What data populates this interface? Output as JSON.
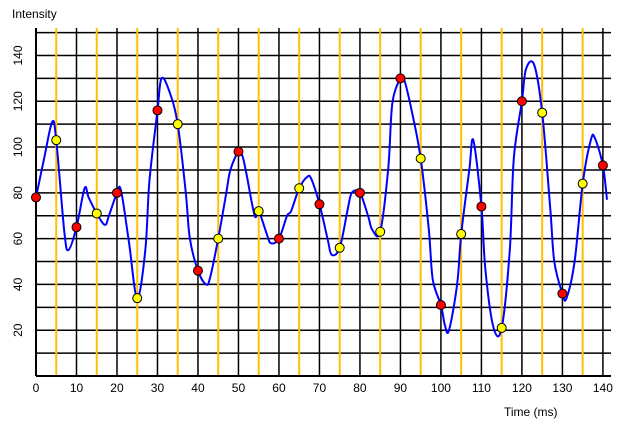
{
  "chart_data": {
    "type": "line",
    "ylabel": "Intensity",
    "xlabel": "Time (ms)",
    "xlim": [
      0,
      142
    ],
    "ylim": [
      0,
      152
    ],
    "x_ticks": [
      0,
      10,
      20,
      30,
      40,
      50,
      60,
      70,
      80,
      90,
      100,
      110,
      120,
      130,
      140
    ],
    "y_ticks": [
      20,
      40,
      60,
      80,
      100,
      120,
      140
    ],
    "grid": true,
    "colors": {
      "line": "#0000ff",
      "grid": "#000000",
      "vertical_markers": "#ffc000",
      "red_points": "#ff0000",
      "yellow_points": "#ffff00"
    },
    "vertical_marker_x": [
      5,
      15,
      25,
      35,
      45,
      55,
      65,
      75,
      85,
      95,
      105,
      115,
      125,
      135
    ],
    "curve": {
      "x": [
        0,
        2,
        4,
        5,
        7,
        8,
        10,
        12,
        13,
        15,
        17,
        18,
        20,
        21,
        23,
        25,
        27,
        28,
        30,
        31,
        33,
        35,
        37,
        38,
        40,
        42,
        43,
        45,
        47,
        48,
        50,
        51,
        52,
        54,
        55,
        57,
        58,
        60,
        62,
        63,
        65,
        67,
        68,
        70,
        72,
        73,
        75,
        77,
        78,
        80,
        82,
        83,
        85,
        87,
        88,
        90,
        91,
        93,
        95,
        97,
        98,
        100,
        101,
        102,
        104,
        105,
        107,
        108,
        110,
        111,
        113,
        115,
        117,
        118,
        120,
        121,
        123,
        125,
        127,
        128,
        130,
        131,
        133,
        135,
        137,
        138,
        140,
        141
      ],
      "y": [
        78,
        95,
        111,
        103,
        63,
        55,
        65,
        82,
        78,
        71,
        66,
        70,
        80,
        81,
        58,
        34,
        55,
        85,
        116,
        130,
        124,
        110,
        80,
        60,
        46,
        40,
        43,
        60,
        80,
        90,
        98,
        96,
        88,
        70,
        72,
        62,
        58,
        60,
        70,
        72,
        82,
        87,
        86,
        75,
        60,
        53,
        56,
        73,
        80,
        80,
        70,
        64,
        63,
        91,
        119,
        130,
        129,
        114,
        95,
        64,
        42,
        31,
        22,
        20,
        40,
        62,
        90,
        103,
        74,
        46,
        21,
        21,
        55,
        95,
        120,
        134,
        136,
        115,
        73,
        50,
        36,
        34,
        50,
        84,
        103,
        104,
        92,
        77
      ]
    },
    "red_points": {
      "x": [
        0,
        10,
        20,
        30,
        40,
        50,
        60,
        70,
        80,
        90,
        100,
        110,
        120,
        130,
        140
      ],
      "y": [
        78,
        65,
        80,
        116,
        46,
        98,
        60,
        75,
        80,
        130,
        31,
        74,
        120,
        36,
        92
      ]
    },
    "yellow_points": {
      "x": [
        5,
        15,
        25,
        35,
        45,
        55,
        65,
        75,
        85,
        95,
        105,
        115,
        125,
        135
      ],
      "y": [
        103,
        71,
        34,
        110,
        60,
        72,
        82,
        56,
        63,
        95,
        62,
        21,
        115,
        84
      ]
    }
  }
}
